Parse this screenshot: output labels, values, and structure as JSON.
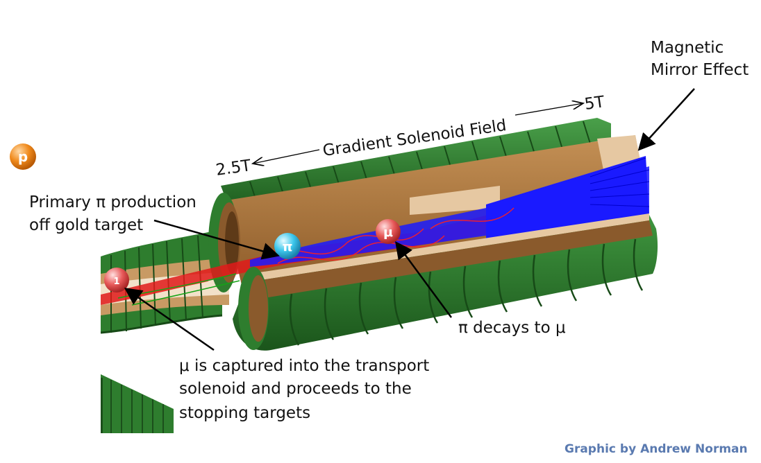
{
  "labels": {
    "magnetic_mirror_line1": "Magnetic",
    "magnetic_mirror_line2": "Mirror Effect",
    "field_low": "2.5T",
    "field_high": "5T",
    "gradient_field": "Gradient Solenoid Field",
    "primary_line1": "Primary π production",
    "primary_line2": "off gold target",
    "pion_decay": "π decays to μ",
    "capture_line1": "μ is captured into the transport",
    "capture_line2": "solenoid and proceeds to the",
    "capture_line3": "stopping targets",
    "credit": "Graphic by Andrew Norman"
  },
  "particles": {
    "proton": "p",
    "pion": "π",
    "muon": "μ",
    "muon_transport": "1"
  },
  "colors": {
    "coil_green": "#2e7d2e",
    "coil_dark": "#1d5a1d",
    "bore_tan": "#b5803f",
    "bore_light": "#e6c8a2",
    "tracks_blue": "#1a1aff",
    "tracks_red": "#e01a1a",
    "proton": "#f08a1c",
    "pion": "#3cc7ec",
    "muon": "#e85a5a",
    "credit": "#5a7ab0"
  }
}
